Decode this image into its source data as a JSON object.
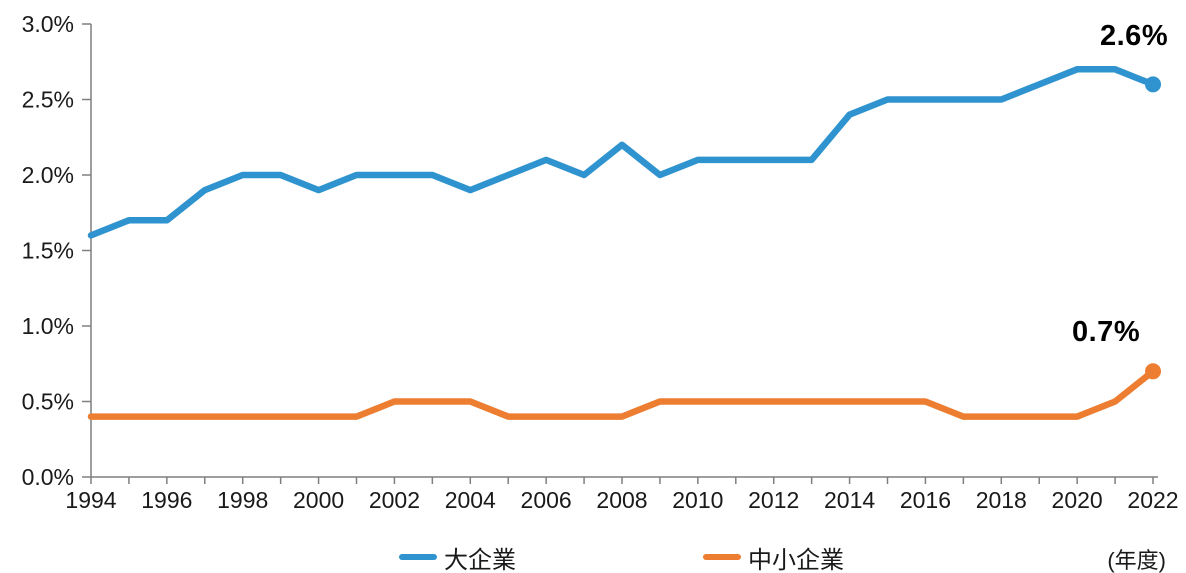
{
  "chart_data": {
    "type": "line",
    "x": [
      1994,
      1995,
      1996,
      1997,
      1998,
      1999,
      2000,
      2001,
      2002,
      2003,
      2004,
      2005,
      2006,
      2007,
      2008,
      2009,
      2010,
      2011,
      2012,
      2013,
      2014,
      2015,
      2016,
      2017,
      2018,
      2019,
      2020,
      2021,
      2022
    ],
    "series": [
      {
        "name": "大企業",
        "color": "#2E93CF",
        "values": [
          1.6,
          1.7,
          1.7,
          1.9,
          2.0,
          2.0,
          1.9,
          2.0,
          2.0,
          2.0,
          1.9,
          2.0,
          2.1,
          2.0,
          2.2,
          2.0,
          2.1,
          2.1,
          2.1,
          2.1,
          2.4,
          2.5,
          2.5,
          2.5,
          2.5,
          2.6,
          2.7,
          2.7,
          2.6
        ],
        "end_label": "2.6%"
      },
      {
        "name": "中小企業",
        "color": "#ED7D31",
        "values": [
          0.4,
          0.4,
          0.4,
          0.4,
          0.4,
          0.4,
          0.4,
          0.4,
          0.5,
          0.5,
          0.5,
          0.4,
          0.4,
          0.4,
          0.4,
          0.5,
          0.5,
          0.5,
          0.5,
          0.5,
          0.5,
          0.5,
          0.5,
          0.4,
          0.4,
          0.4,
          0.4,
          0.5,
          0.7
        ],
        "end_label": "0.7%"
      }
    ],
    "ylim": [
      0,
      3.0
    ],
    "y_ticks": [
      "0.0%",
      "0.5%",
      "1.0%",
      "1.5%",
      "2.0%",
      "2.5%",
      "3.0%"
    ],
    "x_tick_labels": [
      "1994",
      "1996",
      "1998",
      "2000",
      "2002",
      "2004",
      "2006",
      "2008",
      "2010",
      "2012",
      "2014",
      "2016",
      "2018",
      "2020",
      "2022"
    ],
    "x_axis_note": "(年度)",
    "title": "",
    "xlabel": "年度",
    "ylabel": "",
    "grid": false,
    "legend_position": "bottom",
    "axis_color": "#7F7F7F"
  }
}
